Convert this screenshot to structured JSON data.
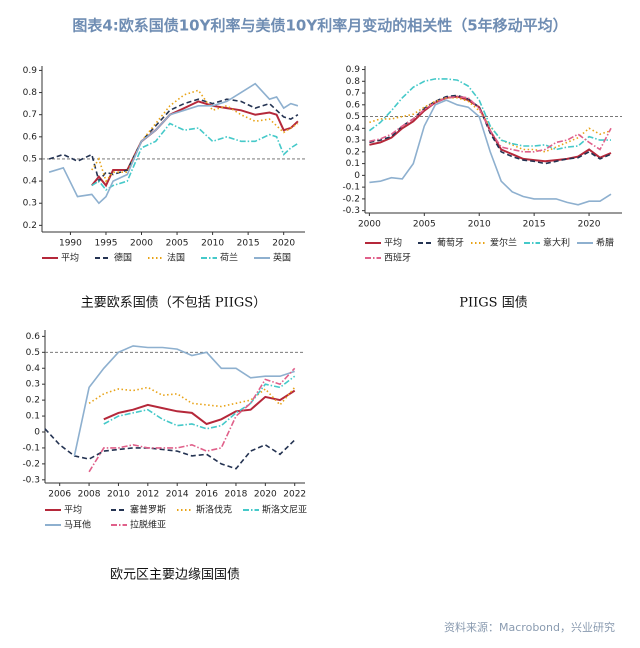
{
  "title": "图表4:欧系国债10Y利率与美债10Y利率月变动的相关性（5年移动平均）",
  "source": "资料来源：Macrobond，兴业研究",
  "chart_data": [
    {
      "type": "line",
      "title": "主要欧系国债（不包括 PIIGS）",
      "xlim": [
        1986,
        2023
      ],
      "ylim": [
        0.17,
        0.92
      ],
      "xticks": [
        1990,
        1995,
        2000,
        2005,
        2010,
        2015,
        2020
      ],
      "yticks": [
        0.2,
        0.3,
        0.4,
        0.5,
        0.6,
        0.7,
        0.8,
        0.9
      ],
      "ref_line": 0.5,
      "x": [
        1987,
        1989,
        1991,
        1993,
        1994,
        1995,
        1996,
        1998,
        2000,
        2002,
        2004,
        2006,
        2008,
        2010,
        2012,
        2014,
        2016,
        2018,
        2019,
        2020,
        2021,
        2022
      ],
      "series": [
        {
          "name": "平均",
          "color": "#b5283a",
          "dash": "solid",
          "values": [
            null,
            null,
            null,
            0.38,
            0.42,
            0.38,
            0.45,
            0.45,
            0.58,
            0.63,
            0.7,
            0.73,
            0.76,
            0.74,
            0.73,
            0.72,
            0.7,
            0.71,
            0.7,
            0.63,
            0.64,
            0.67
          ]
        },
        {
          "name": "德国",
          "color": "#243352",
          "dash": "dashed",
          "values": [
            0.5,
            0.52,
            0.49,
            0.52,
            0.4,
            0.44,
            0.43,
            0.45,
            0.58,
            0.65,
            0.72,
            0.75,
            0.77,
            0.75,
            0.77,
            0.76,
            0.73,
            0.75,
            0.72,
            0.69,
            0.68,
            0.7
          ]
        },
        {
          "name": "法国",
          "color": "#e8a317",
          "dash": "dotted",
          "values": [
            null,
            null,
            null,
            0.45,
            0.5,
            0.4,
            0.44,
            0.44,
            0.58,
            0.66,
            0.74,
            0.79,
            0.81,
            0.72,
            0.74,
            0.7,
            0.67,
            0.68,
            0.65,
            0.62,
            0.64,
            0.66
          ]
        },
        {
          "name": "荷兰",
          "color": "#45c9c9",
          "dash": "dashdot",
          "values": [
            null,
            null,
            null,
            0.38,
            0.4,
            0.36,
            0.38,
            0.4,
            0.55,
            0.58,
            0.66,
            0.63,
            0.64,
            0.58,
            0.6,
            0.58,
            0.58,
            0.61,
            0.6,
            0.52,
            0.55,
            0.57
          ]
        },
        {
          "name": "英国",
          "color": "#8eb0cf",
          "dash": "solid",
          "values": [
            0.44,
            0.46,
            0.33,
            0.34,
            0.3,
            0.33,
            0.4,
            0.43,
            0.58,
            0.63,
            0.7,
            0.72,
            0.74,
            0.74,
            0.76,
            0.8,
            0.84,
            0.77,
            0.78,
            0.73,
            0.75,
            0.74
          ]
        }
      ]
    },
    {
      "type": "line",
      "title": "PIIGS 国债",
      "xlim": [
        1999.6,
        2023
      ],
      "ylim": [
        -0.32,
        0.93
      ],
      "xticks": [
        2000,
        2005,
        2010,
        2015,
        2020
      ],
      "yticks": [
        -0.3,
        -0.2,
        -0.1,
        0,
        0.1,
        0.2,
        0.3,
        0.4,
        0.5,
        0.6,
        0.7,
        0.8,
        0.9
      ],
      "ref_line": 0.5,
      "x": [
        2000,
        2001,
        2002,
        2003,
        2004,
        2005,
        2006,
        2007,
        2008,
        2009,
        2010,
        2011,
        2012,
        2013,
        2014,
        2015,
        2016,
        2017,
        2018,
        2019,
        2020,
        2021,
        2022
      ],
      "series": [
        {
          "name": "平均",
          "color": "#b5283a",
          "dash": "solid",
          "values": [
            0.26,
            0.28,
            0.32,
            0.4,
            0.46,
            0.55,
            0.62,
            0.66,
            0.67,
            0.64,
            0.58,
            0.38,
            0.22,
            0.18,
            0.14,
            0.13,
            0.12,
            0.13,
            0.14,
            0.16,
            0.22,
            0.15,
            0.19
          ]
        },
        {
          "name": "葡萄牙",
          "color": "#243352",
          "dash": "dashed",
          "values": [
            0.28,
            0.3,
            0.33,
            0.42,
            0.48,
            0.57,
            0.63,
            0.67,
            0.68,
            0.65,
            0.58,
            0.36,
            0.2,
            0.16,
            0.13,
            0.12,
            0.1,
            0.12,
            0.14,
            0.15,
            0.2,
            0.14,
            0.18
          ]
        },
        {
          "name": "爱尔兰",
          "color": "#e8a317",
          "dash": "dotted",
          "values": [
            0.45,
            0.48,
            0.48,
            0.5,
            0.52,
            0.58,
            0.63,
            0.66,
            0.66,
            0.63,
            0.55,
            0.42,
            0.3,
            0.26,
            0.22,
            0.22,
            0.2,
            0.24,
            0.28,
            0.32,
            0.4,
            0.35,
            0.38
          ]
        },
        {
          "name": "意大利",
          "color": "#45c9c9",
          "dash": "dashdot",
          "values": [
            0.38,
            0.45,
            0.55,
            0.66,
            0.75,
            0.8,
            0.82,
            0.82,
            0.81,
            0.76,
            0.64,
            0.42,
            0.3,
            0.27,
            0.25,
            0.25,
            0.26,
            0.22,
            0.24,
            0.25,
            0.33,
            0.3,
            0.3
          ]
        },
        {
          "name": "希腊",
          "color": "#8eb0cf",
          "dash": "solid",
          "values": [
            -0.06,
            -0.05,
            -0.02,
            -0.03,
            0.1,
            0.42,
            0.6,
            0.64,
            0.6,
            0.58,
            0.5,
            0.2,
            -0.05,
            -0.14,
            -0.18,
            -0.2,
            -0.2,
            -0.2,
            -0.23,
            -0.25,
            -0.22,
            -0.22,
            -0.16
          ]
        },
        {
          "name": "西班牙",
          "color": "#e0608a",
          "dash": "dashdot",
          "values": [
            0.29,
            0.31,
            0.35,
            0.42,
            0.48,
            0.56,
            0.62,
            0.66,
            0.67,
            0.66,
            0.57,
            0.38,
            0.24,
            0.22,
            0.2,
            0.2,
            0.22,
            0.28,
            0.3,
            0.35,
            0.28,
            0.22,
            0.4
          ]
        }
      ]
    },
    {
      "type": "line",
      "title": "欧元区主要边缘国国债",
      "xlim": [
        2005,
        2022.7
      ],
      "ylim": [
        -0.32,
        0.64
      ],
      "xticks": [
        2006,
        2008,
        2010,
        2012,
        2014,
        2016,
        2018,
        2020,
        2022
      ],
      "yticks": [
        -0.3,
        -0.2,
        -0.1,
        0,
        0.1,
        0.2,
        0.3,
        0.4,
        0.5,
        0.6
      ],
      "ref_line": 0.5,
      "x": [
        2005,
        2006,
        2007,
        2008,
        2009,
        2010,
        2011,
        2012,
        2013,
        2014,
        2015,
        2016,
        2017,
        2018,
        2019,
        2020,
        2021,
        2022
      ],
      "series": [
        {
          "name": "平均",
          "color": "#b5283a",
          "dash": "solid",
          "values": [
            null,
            null,
            null,
            null,
            0.08,
            0.12,
            0.14,
            0.17,
            0.15,
            0.13,
            0.12,
            0.05,
            0.08,
            0.13,
            0.14,
            0.22,
            0.2,
            0.26
          ]
        },
        {
          "name": "塞普罗斯",
          "color": "#243352",
          "dash": "dashed",
          "values": [
            0.02,
            -0.08,
            -0.15,
            -0.17,
            -0.12,
            -0.11,
            -0.1,
            -0.1,
            -0.11,
            -0.12,
            -0.15,
            -0.14,
            -0.2,
            -0.23,
            -0.12,
            -0.08,
            -0.14,
            -0.05
          ]
        },
        {
          "name": "斯洛伐克",
          "color": "#e8a317",
          "dash": "dotted",
          "values": [
            null,
            null,
            null,
            0.18,
            0.24,
            0.27,
            0.26,
            0.28,
            0.23,
            0.24,
            0.18,
            0.17,
            0.16,
            0.18,
            0.2,
            0.27,
            0.17,
            0.28
          ]
        },
        {
          "name": "斯洛文尼亚",
          "color": "#45c9c9",
          "dash": "dashdot",
          "values": [
            null,
            null,
            null,
            null,
            0.05,
            0.1,
            0.12,
            0.14,
            0.08,
            0.04,
            0.05,
            0.02,
            0.04,
            0.12,
            0.18,
            0.3,
            0.28,
            0.35
          ]
        },
        {
          "name": "马耳他",
          "color": "#8eb0cf",
          "dash": "solid",
          "values": [
            null,
            null,
            -0.15,
            0.28,
            0.4,
            0.5,
            0.54,
            0.53,
            0.53,
            0.52,
            0.48,
            0.5,
            0.4,
            0.4,
            0.34,
            0.35,
            0.35,
            0.38
          ]
        },
        {
          "name": "拉脱维亚",
          "color": "#e0608a",
          "dash": "dashdot",
          "values": [
            null,
            null,
            null,
            -0.25,
            -0.1,
            -0.1,
            -0.08,
            -0.1,
            -0.1,
            -0.1,
            -0.08,
            -0.12,
            -0.1,
            0.1,
            0.18,
            0.33,
            0.3,
            0.4
          ]
        }
      ]
    }
  ]
}
